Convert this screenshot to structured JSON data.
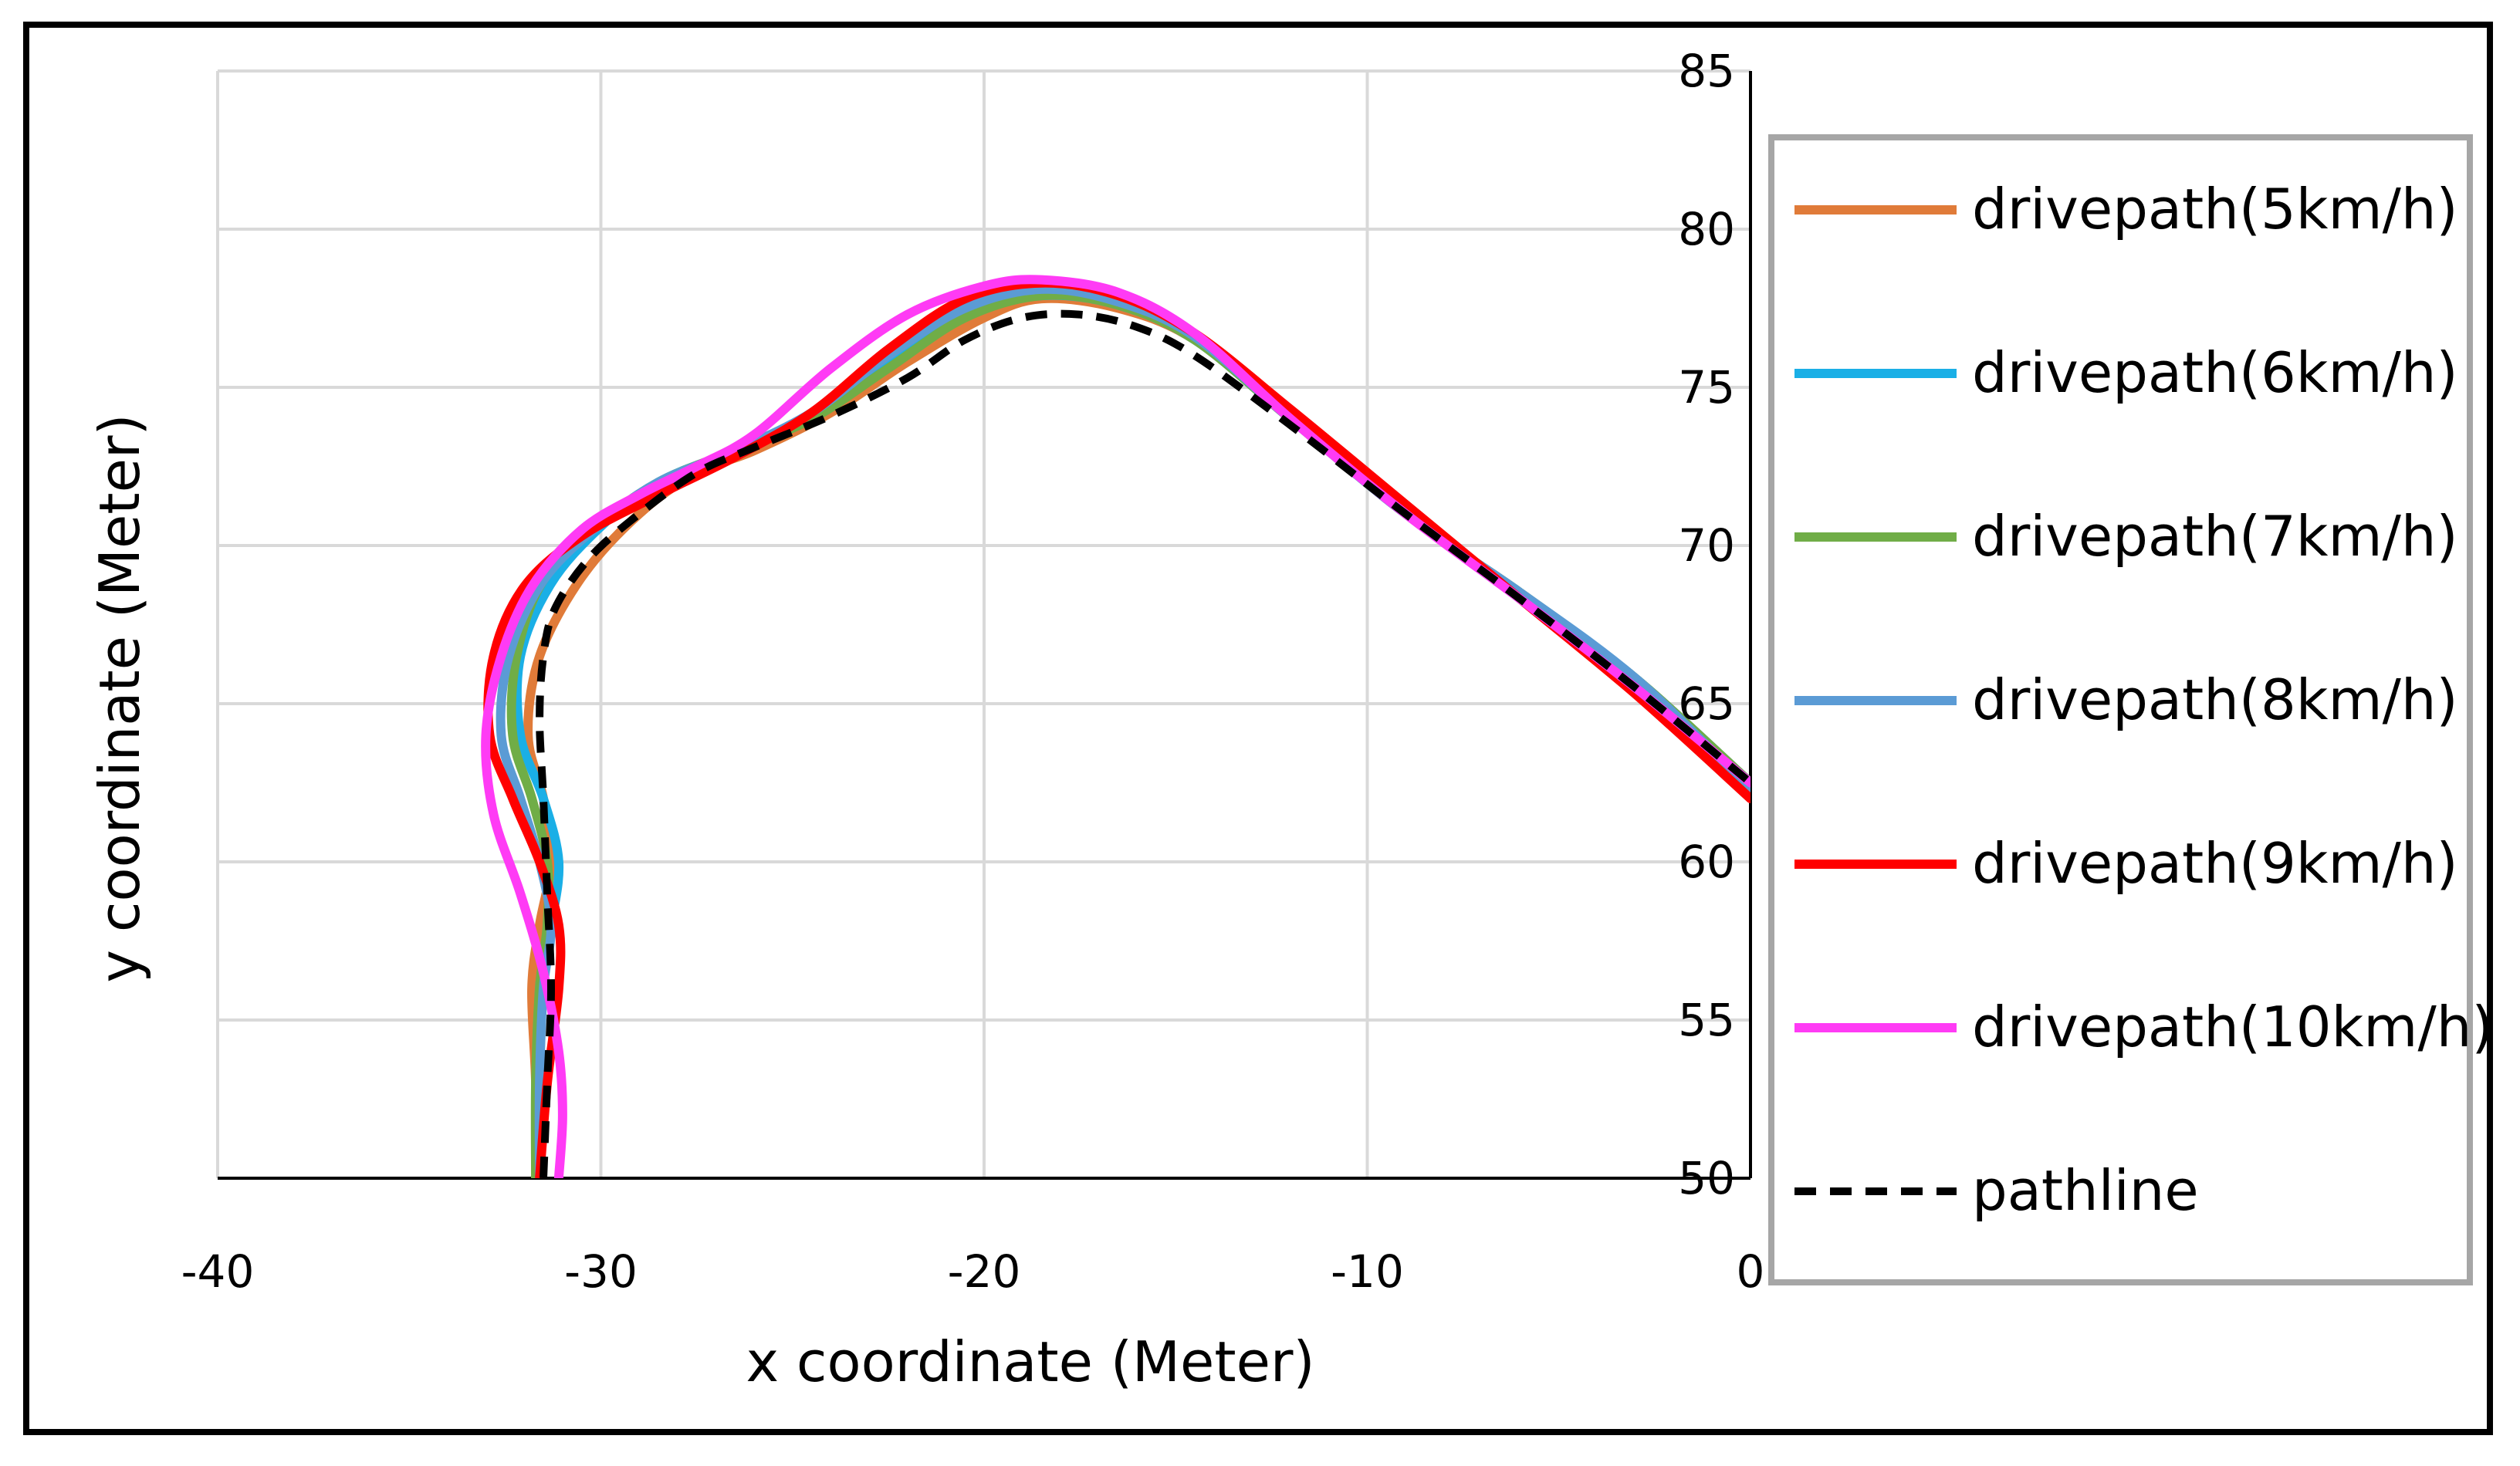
{
  "chart_data": {
    "type": "line",
    "title": "",
    "xlabel": "x coordinate (Meter)",
    "ylabel": "y coordinate (Meter)",
    "xlim": [
      -40,
      0
    ],
    "ylim": [
      50,
      85
    ],
    "xticks": [
      "-40",
      "-30",
      "-20",
      "-10",
      "0"
    ],
    "yticks": [
      "85",
      "80",
      "75",
      "70",
      "65",
      "60",
      "55",
      "50"
    ],
    "grid": true,
    "legend_position": "right",
    "series": [
      {
        "name": "drivepath(5km/h)",
        "color": "#E07B39",
        "dash": "solid",
        "x": [
          -31.7,
          -31.7,
          -31.8,
          -31.6,
          -31.3,
          -31.5,
          -31.9,
          -31.6,
          -30.5,
          -29,
          -27.5,
          -26,
          -24,
          -22,
          -20,
          -18.5,
          -16.5,
          -14.5,
          -12,
          -9,
          -6,
          -3,
          0
        ],
        "y": [
          50,
          53,
          56,
          58,
          60,
          62,
          64,
          66.5,
          69,
          71,
          72.3,
          73,
          74.2,
          75.8,
          77.2,
          77.8,
          77.5,
          76.5,
          74,
          71,
          68.5,
          65.8,
          62.5
        ]
      },
      {
        "name": "drivepath(6km/h)",
        "color": "#1AAFE6",
        "dash": "solid",
        "x": [
          -31.6,
          -31.6,
          -31.6,
          -31.3,
          -31.1,
          -31.5,
          -32.1,
          -32.1,
          -31.3,
          -30,
          -28.5,
          -26.5,
          -24.5,
          -22.5,
          -20.5,
          -18.5,
          -16.5,
          -14.5,
          -12,
          -9,
          -6,
          -3,
          0
        ],
        "y": [
          50,
          53,
          56,
          58,
          60,
          62,
          64,
          66.5,
          68.8,
          70.6,
          72,
          73,
          74.1,
          75.8,
          77.3,
          77.9,
          77.6,
          76.5,
          74,
          71,
          68.5,
          65.8,
          62.5
        ]
      },
      {
        "name": "drivepath(7km/h)",
        "color": "#70AD47",
        "dash": "solid",
        "x": [
          -31.7,
          -31.7,
          -31.6,
          -31.4,
          -31.4,
          -31.8,
          -32.3,
          -32.2,
          -31.5,
          -30,
          -28.5,
          -26.5,
          -24.5,
          -22.5,
          -20.5,
          -18.5,
          -16.5,
          -14.5,
          -12,
          -9,
          -6,
          -3,
          0
        ],
        "y": [
          50,
          53,
          56,
          58,
          60,
          62,
          64,
          66.5,
          68.9,
          70.7,
          72,
          73,
          74,
          75.6,
          77.2,
          77.9,
          77.6,
          76.5,
          74,
          71,
          68.5,
          65.8,
          62.5
        ]
      },
      {
        "name": "drivepath(8km/h)",
        "color": "#5B9BD5",
        "dash": "solid",
        "x": [
          -31.6,
          -31.6,
          -31.5,
          -31.3,
          -31.6,
          -32.1,
          -32.6,
          -32.4,
          -31.5,
          -30,
          -28.5,
          -26.5,
          -24.5,
          -22.5,
          -20.5,
          -18.5,
          -16.5,
          -14.5,
          -12,
          -9,
          -6,
          -3,
          0
        ],
        "y": [
          50,
          53,
          56,
          58,
          60,
          62,
          64,
          66.5,
          68.9,
          70.7,
          72,
          73,
          74.2,
          76,
          77.5,
          78.1,
          77.7,
          76.6,
          74,
          71,
          68.5,
          65.8,
          62.3
        ]
      },
      {
        "name": "drivepath(9km/h)",
        "color": "#FF0000",
        "dash": "solid",
        "x": [
          -31.6,
          -31.4,
          -31.1,
          -31.1,
          -31.6,
          -32.3,
          -32.9,
          -32.8,
          -32,
          -30.5,
          -28.5,
          -26.5,
          -24.5,
          -22.5,
          -20.5,
          -18.5,
          -16.5,
          -14.5,
          -12,
          -9,
          -6,
          -3,
          0
        ],
        "y": [
          50,
          53,
          56,
          58,
          60,
          62,
          64,
          66.5,
          68.7,
          70.3,
          71.6,
          72.8,
          74.2,
          76.2,
          77.8,
          78.3,
          77.9,
          76.7,
          74.3,
          71.3,
          68.3,
          65.3,
          62
        ]
      },
      {
        "name": "drivepath(10km/h)",
        "color": "#FF3BF5",
        "dash": "solid",
        "x": [
          -31.1,
          -31,
          -31.1,
          -31.5,
          -32.1,
          -32.8,
          -33,
          -32.6,
          -31.8,
          -30.5,
          -29,
          -27.5,
          -26,
          -24,
          -22,
          -20,
          -18.5,
          -16.5,
          -14.5,
          -12,
          -9,
          -6,
          -3,
          0
        ],
        "y": [
          50,
          52,
          54,
          56.5,
          59,
          61.5,
          64,
          66.5,
          68.7,
          70.5,
          71.6,
          72.5,
          73.5,
          75.6,
          77.3,
          78.2,
          78.4,
          78,
          76.7,
          74,
          71,
          68.3,
          65.5,
          62.5
        ]
      },
      {
        "name": "pathline",
        "color": "#000000",
        "dash": "dashed",
        "x": [
          -31.5,
          -31.4,
          -31.3,
          -31.4,
          -31.5,
          -31.6,
          -31.5,
          -31.2,
          -30.3,
          -29,
          -27.5,
          -26,
          -24,
          -22,
          -20.5,
          -19,
          -17.5,
          -16,
          -14.5,
          -12,
          -9,
          -6,
          -3,
          0
        ],
        "y": [
          50,
          53,
          56,
          59,
          62,
          64.5,
          66.5,
          68,
          69.6,
          71,
          72.3,
          73.1,
          74.1,
          75.3,
          76.5,
          77.2,
          77.3,
          76.9,
          76,
          73.8,
          71,
          68.3,
          65.5,
          62.5
        ]
      }
    ]
  }
}
